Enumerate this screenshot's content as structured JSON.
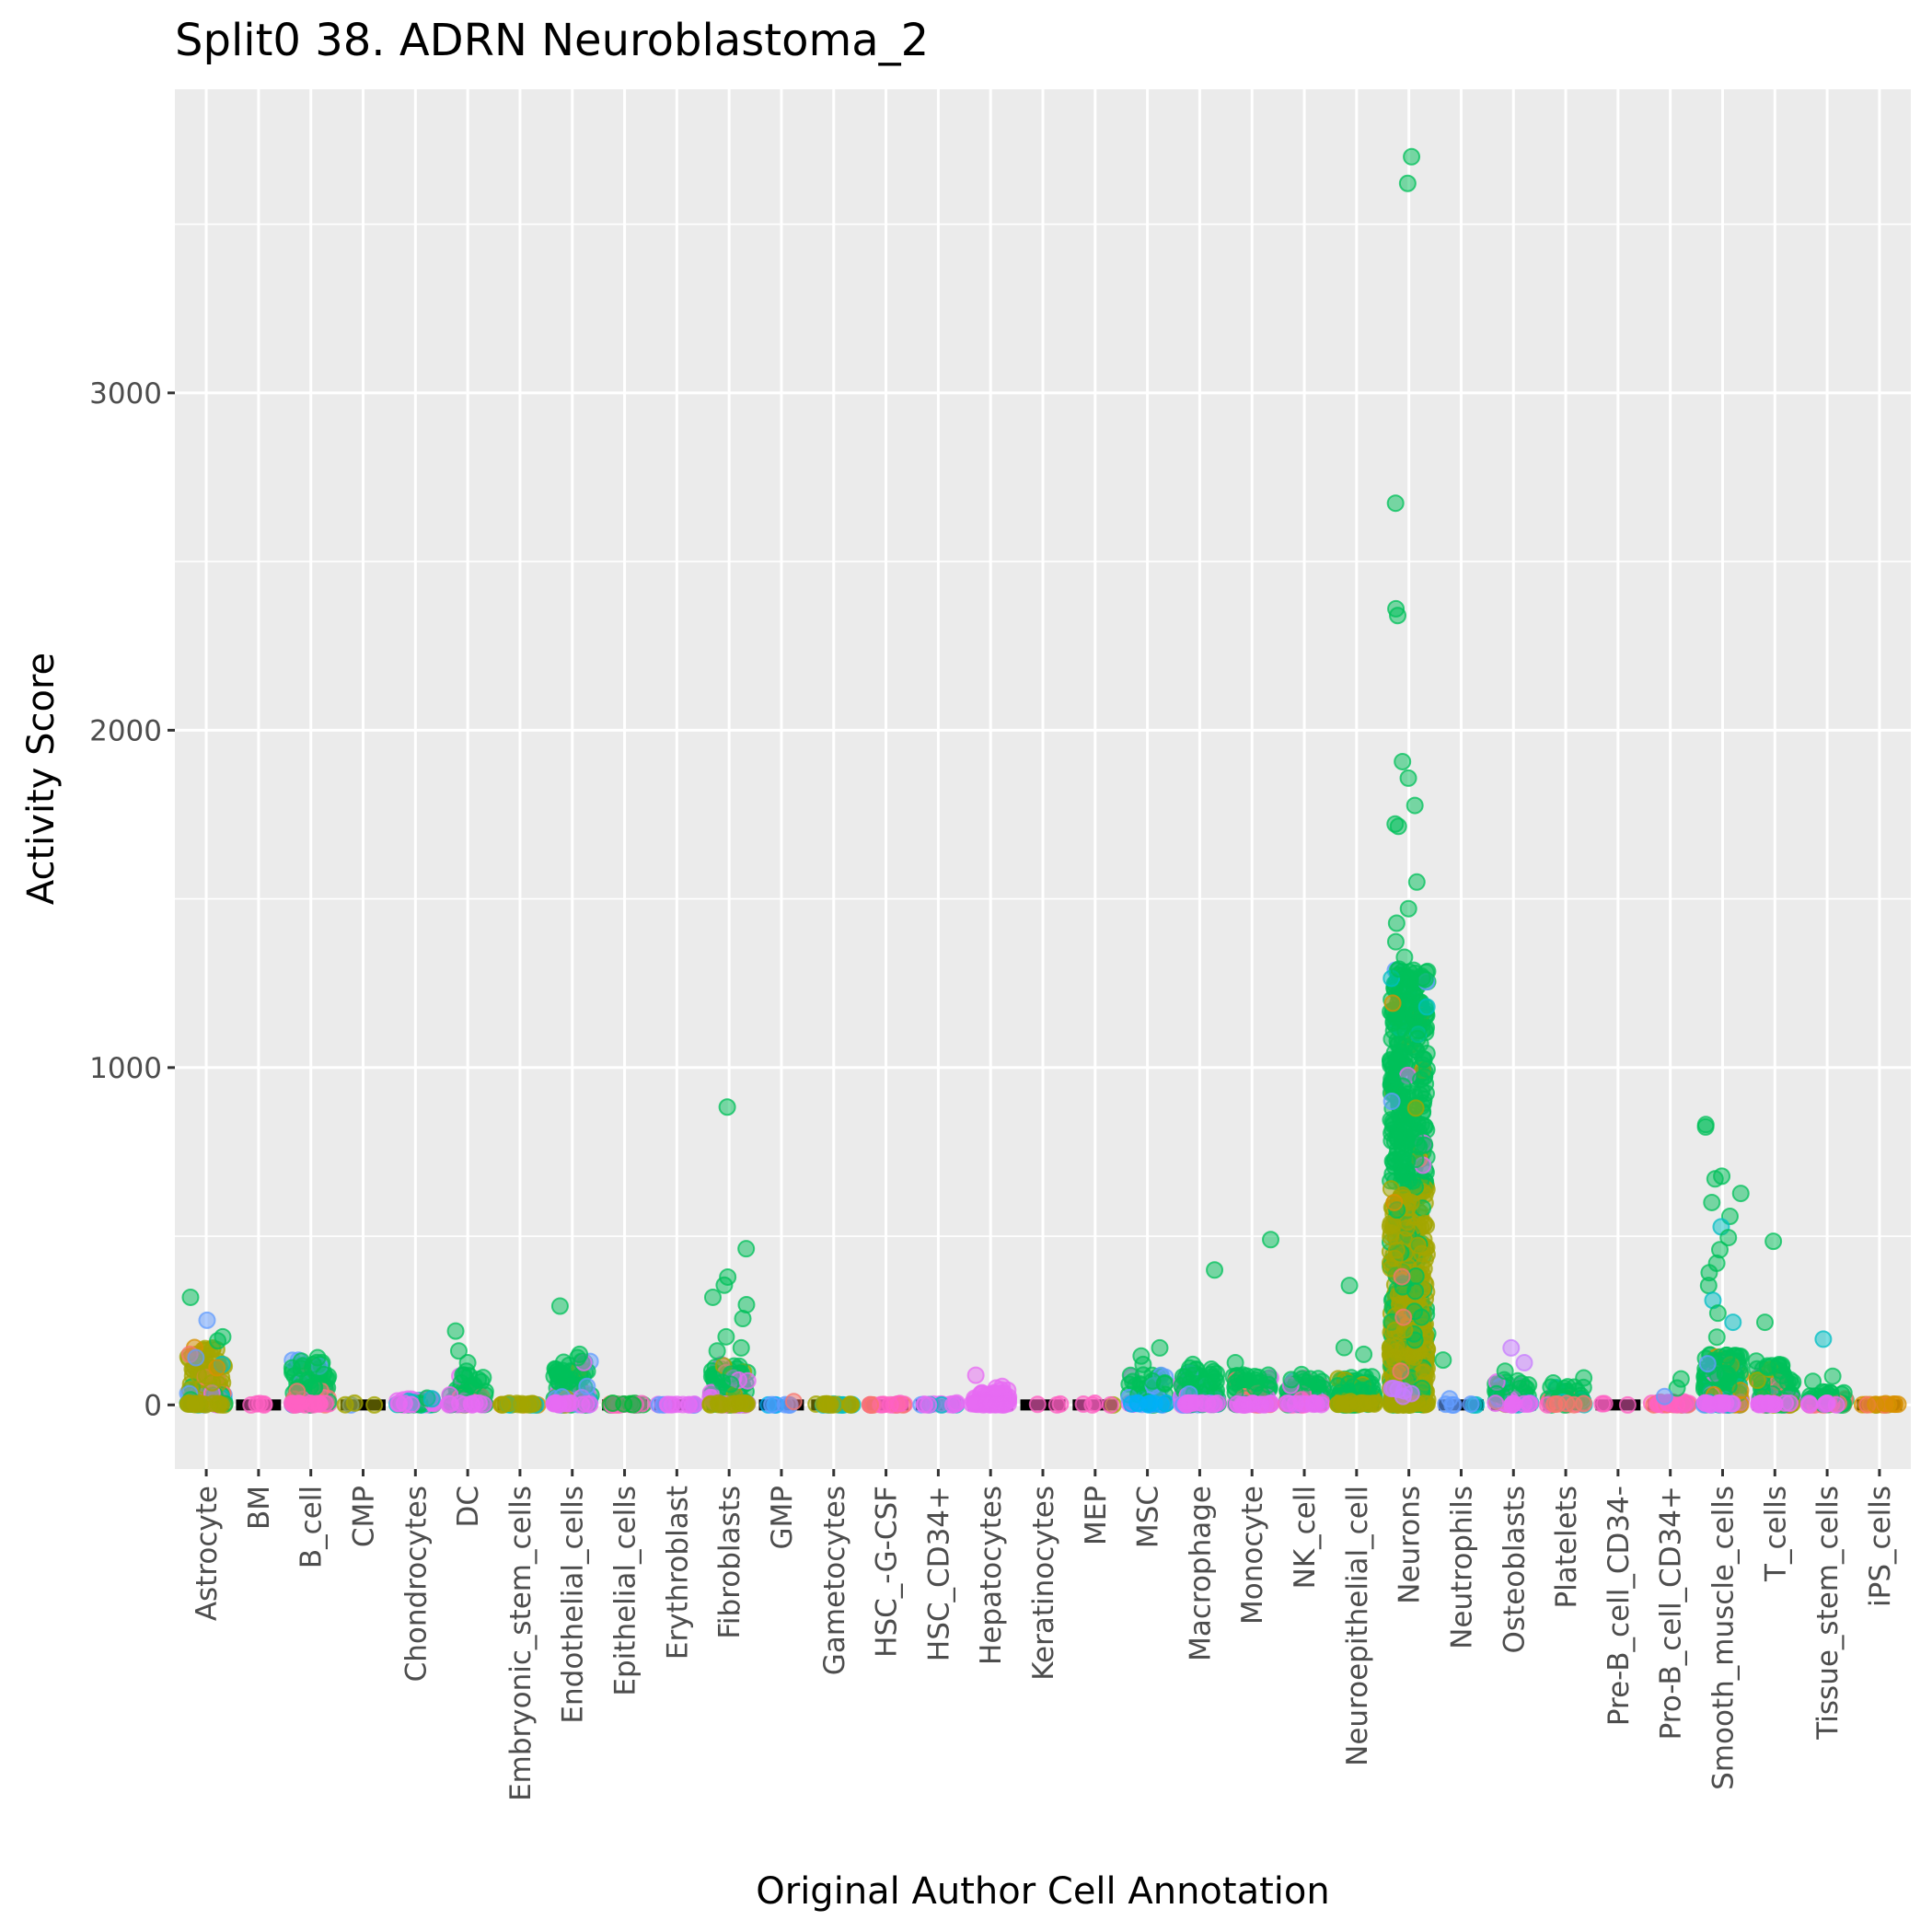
{
  "chart_data": {
    "type": "scatter",
    "subtype": "jitter-strip",
    "title": "Split0 38. ADRN Neuroblastoma_2",
    "xlabel": "Original Author Cell Annotation",
    "ylabel": "Activity Score",
    "ylim": [
      -190,
      3900
    ],
    "yticks": [
      0,
      1000,
      2000,
      3000
    ],
    "ytick_labels": [
      "0",
      "1000",
      "2000",
      "3000"
    ],
    "grid": true,
    "legend": "none",
    "palette": {
      "green": "#00C05A",
      "pink": "#FF61C3",
      "magenta": "#E76BF3",
      "olive": "#A3A500",
      "orange": "#D89000",
      "salmon": "#F8766D",
      "blue": "#619CFF",
      "skyblue": "#00B0F6",
      "cyan": "#00BFC4",
      "violet": "#C77CFF",
      "darkgreen": "#00BA38",
      "median": "#000000",
      "panel": "#EBEBEB",
      "gridline": "#FFFFFF"
    },
    "categories": [
      "Astrocyte",
      "BM",
      "B_cell",
      "CMP",
      "Chondrocytes",
      "DC",
      "Embryonic_stem_cells",
      "Endothelial_cells",
      "Epithelial_cells",
      "Erythroblast",
      "Fibroblasts",
      "GMP",
      "Gametocytes",
      "HSC_-G-CSF",
      "HSC_CD34+",
      "Hepatocytes",
      "Keratinocytes",
      "MEP",
      "MSC",
      "Macrophage",
      "Monocyte",
      "NK_cell",
      "Neuroepithelial_cell",
      "Neurons",
      "Neutrophils",
      "Osteoblasts",
      "Platelets",
      "Pre-B_cell_CD34-",
      "Pro-B_cell_CD34+",
      "Smooth_muscle_cells",
      "T_cells",
      "Tissue_stem_cells",
      "iPS_cells"
    ],
    "series": [
      {
        "category": "Astrocyte",
        "median": 0,
        "mass_top": 170,
        "count": 120,
        "colors": [
          "olive",
          "green",
          "salmon",
          "blue",
          "cyan",
          "orange",
          "magenta"
        ],
        "outliers": [
          [
            319,
            "green"
          ],
          [
            251,
            "blue"
          ],
          [
            202,
            "green"
          ],
          [
            190,
            "green"
          ],
          [
            170,
            "orange"
          ],
          [
            150,
            "salmon"
          ],
          [
            140,
            "blue"
          ],
          [
            120,
            "cyan"
          ],
          [
            110,
            "orange"
          ]
        ]
      },
      {
        "category": "BM",
        "median": 0,
        "mass_top": 0,
        "count": 2,
        "colors": [
          "pink"
        ],
        "outliers": [
          [
            4,
            "pink"
          ]
        ]
      },
      {
        "category": "B_cell",
        "median": 0,
        "mass_top": 135,
        "count": 110,
        "colors": [
          "green",
          "pink",
          "salmon",
          "blue"
        ],
        "outliers": [
          [
            140,
            "green"
          ],
          [
            130,
            "green"
          ]
        ]
      },
      {
        "category": "CMP",
        "median": 0,
        "mass_top": 0,
        "count": 2,
        "colors": [
          "olive",
          "blue"
        ],
        "outliers": []
      },
      {
        "category": "Chondrocytes",
        "median": 0,
        "mass_top": 20,
        "count": 40,
        "colors": [
          "magenta",
          "green",
          "cyan"
        ],
        "outliers": [
          [
            20,
            "green"
          ],
          [
            18,
            "cyan"
          ]
        ]
      },
      {
        "category": "DC",
        "median": 0,
        "mass_top": 95,
        "count": 70,
        "colors": [
          "green",
          "magenta",
          "salmon"
        ],
        "outliers": [
          [
            219,
            "green"
          ],
          [
            160,
            "green"
          ],
          [
            125,
            "green"
          ],
          [
            100,
            "green"
          ]
        ]
      },
      {
        "category": "Embryonic_stem_cells",
        "median": 0,
        "mass_top": 5,
        "count": 20,
        "colors": [
          "olive",
          "orange",
          "cyan"
        ],
        "outliers": []
      },
      {
        "category": "Endothelial_cells",
        "median": 0,
        "mass_top": 130,
        "count": 100,
        "colors": [
          "green",
          "magenta",
          "cyan",
          "blue",
          "olive"
        ],
        "outliers": [
          [
            293,
            "green"
          ],
          [
            150,
            "green"
          ],
          [
            140,
            "green"
          ],
          [
            55,
            "blue"
          ]
        ]
      },
      {
        "category": "Epithelial_cells",
        "median": 0,
        "mass_top": 5,
        "count": 20,
        "colors": [
          "darkgreen",
          "salmon",
          "pink"
        ],
        "outliers": []
      },
      {
        "category": "Erythroblast",
        "median": 0,
        "mass_top": 2,
        "count": 15,
        "colors": [
          "magenta",
          "blue",
          "violet",
          "pink"
        ],
        "outliers": []
      },
      {
        "category": "Fibroblasts",
        "median": 0,
        "mass_top": 120,
        "count": 130,
        "colors": [
          "green",
          "olive",
          "magenta",
          "violet"
        ],
        "outliers": [
          [
            883,
            "green"
          ],
          [
            463,
            "green"
          ],
          [
            379,
            "green"
          ],
          [
            355,
            "green"
          ],
          [
            319,
            "green"
          ],
          [
            297,
            "green"
          ],
          [
            256,
            "green"
          ],
          [
            202,
            "green"
          ],
          [
            169,
            "green"
          ],
          [
            160,
            "green"
          ]
        ]
      },
      {
        "category": "GMP",
        "median": 0,
        "mass_top": 0,
        "count": 5,
        "colors": [
          "blue",
          "salmon",
          "skyblue"
        ],
        "outliers": [
          [
            10,
            "salmon"
          ]
        ]
      },
      {
        "category": "Gametocytes",
        "median": 0,
        "mass_top": 3,
        "count": 20,
        "colors": [
          "olive",
          "cyan"
        ],
        "outliers": []
      },
      {
        "category": "HSC_-G-CSF",
        "median": 0,
        "mass_top": 3,
        "count": 15,
        "colors": [
          "pink",
          "salmon"
        ],
        "outliers": []
      },
      {
        "category": "HSC_CD34+",
        "median": 0,
        "mass_top": 3,
        "count": 15,
        "colors": [
          "magenta",
          "blue",
          "cyan"
        ],
        "outliers": []
      },
      {
        "category": "Hepatocytes",
        "median": 0,
        "mass_top": 45,
        "count": 60,
        "colors": [
          "magenta"
        ],
        "outliers": [
          [
            88,
            "magenta"
          ],
          [
            55,
            "magenta"
          ],
          [
            50,
            "magenta"
          ]
        ]
      },
      {
        "category": "Keratinocytes",
        "median": 0,
        "mass_top": 0,
        "count": 1,
        "colors": [
          "pink"
        ],
        "outliers": []
      },
      {
        "category": "MEP",
        "median": 0,
        "mass_top": 0,
        "count": 3,
        "colors": [
          "pink",
          "olive"
        ],
        "outliers": []
      },
      {
        "category": "MSC",
        "median": 0,
        "mass_top": 95,
        "count": 60,
        "colors": [
          "green",
          "skyblue",
          "magenta",
          "blue"
        ],
        "outliers": [
          [
            169,
            "green"
          ],
          [
            145,
            "green"
          ],
          [
            120,
            "green"
          ]
        ]
      },
      {
        "category": "Macrophage",
        "median": 0,
        "mass_top": 110,
        "count": 110,
        "colors": [
          "green",
          "magenta",
          "blue"
        ],
        "outliers": [
          [
            400,
            "green"
          ],
          [
            120,
            "green"
          ]
        ]
      },
      {
        "category": "Monocyte",
        "median": 0,
        "mass_top": 95,
        "count": 90,
        "colors": [
          "green",
          "magenta",
          "salmon"
        ],
        "outliers": [
          [
            490,
            "green"
          ],
          [
            125,
            "green"
          ]
        ]
      },
      {
        "category": "NK_cell",
        "median": 0,
        "mass_top": 80,
        "count": 70,
        "colors": [
          "green",
          "magenta",
          "pink",
          "blue"
        ],
        "outliers": [
          [
            90,
            "green"
          ],
          [
            75,
            "green"
          ]
        ]
      },
      {
        "category": "Neuroepithelial_cell",
        "median": 0,
        "mass_top": 85,
        "count": 100,
        "colors": [
          "green",
          "olive"
        ],
        "outliers": [
          [
            354,
            "green"
          ],
          [
            170,
            "green"
          ],
          [
            150,
            "green"
          ]
        ]
      },
      {
        "category": "Neurons",
        "median": 0,
        "mass_top": 1290,
        "olive_top": 650,
        "count": 900,
        "colors": [
          "green",
          "olive",
          "magenta",
          "cyan",
          "blue",
          "orange"
        ],
        "outliers": [
          [
            3700,
            "green"
          ],
          [
            3621,
            "green"
          ],
          [
            2673,
            "green"
          ],
          [
            2360,
            "green"
          ],
          [
            2340,
            "green"
          ],
          [
            1907,
            "green"
          ],
          [
            1858,
            "green"
          ],
          [
            1777,
            "green"
          ],
          [
            1722,
            "green"
          ],
          [
            1715,
            "green"
          ],
          [
            1550,
            "green"
          ],
          [
            1471,
            "green"
          ],
          [
            1428,
            "green"
          ],
          [
            1373,
            "green"
          ],
          [
            1327,
            "green"
          ],
          [
            1292,
            "green"
          ],
          [
            1240,
            "green"
          ],
          [
            1180,
            "cyan"
          ],
          [
            900,
            "blue"
          ],
          [
            880,
            "olive"
          ],
          [
            600,
            "orange"
          ],
          [
            380,
            "salmon"
          ],
          [
            260,
            "salmon"
          ],
          [
            100,
            "salmon"
          ]
        ]
      },
      {
        "category": "Neutrophils",
        "median": 0,
        "mass_top": 0,
        "count": 4,
        "colors": [
          "blue",
          "cyan",
          "salmon"
        ],
        "outliers": [
          [
            133,
            "green"
          ],
          [
            18,
            "blue"
          ]
        ]
      },
      {
        "category": "Osteoblasts",
        "median": 0,
        "mass_top": 80,
        "count": 60,
        "colors": [
          "green",
          "magenta",
          "olive",
          "cyan"
        ],
        "outliers": [
          [
            169,
            "violet"
          ],
          [
            125,
            "violet"
          ],
          [
            100,
            "green"
          ]
        ]
      },
      {
        "category": "Platelets",
        "median": 0,
        "mass_top": 55,
        "count": 40,
        "colors": [
          "green",
          "salmon",
          "pink",
          "cyan"
        ],
        "outliers": [
          [
            80,
            "green"
          ],
          [
            65,
            "green"
          ]
        ]
      },
      {
        "category": "Pre-B_cell_CD34-",
        "median": 0,
        "mass_top": 0,
        "count": 1,
        "colors": [
          "pink"
        ],
        "outliers": []
      },
      {
        "category": "Pro-B_cell_CD34+",
        "median": 0,
        "mass_top": 10,
        "count": 40,
        "colors": [
          "pink",
          "blue",
          "salmon"
        ],
        "outliers": [
          [
            77,
            "green"
          ],
          [
            50,
            "green"
          ],
          [
            25,
            "blue"
          ]
        ]
      },
      {
        "category": "Smooth_muscle_cells",
        "median": 0,
        "mass_top": 150,
        "count": 200,
        "colors": [
          "green",
          "magenta",
          "cyan",
          "blue",
          "orange"
        ],
        "outliers": [
          [
            831,
            "green"
          ],
          [
            824,
            "green"
          ],
          [
            678,
            "green"
          ],
          [
            670,
            "green"
          ],
          [
            627,
            "green"
          ],
          [
            600,
            "green"
          ],
          [
            559,
            "green"
          ],
          [
            528,
            "cyan"
          ],
          [
            496,
            "green"
          ],
          [
            460,
            "green"
          ],
          [
            420,
            "green"
          ],
          [
            392,
            "green"
          ],
          [
            354,
            "green"
          ],
          [
            310,
            "cyan"
          ],
          [
            272,
            "green"
          ],
          [
            245,
            "cyan"
          ],
          [
            201,
            "green"
          ]
        ]
      },
      {
        "category": "T_cells",
        "median": 0,
        "mass_top": 120,
        "count": 110,
        "colors": [
          "green",
          "magenta",
          "olive",
          "salmon"
        ],
        "outliers": [
          [
            485,
            "green"
          ],
          [
            245,
            "green"
          ],
          [
            130,
            "green"
          ]
        ]
      },
      {
        "category": "Tissue_stem_cells",
        "median": 0,
        "mass_top": 40,
        "count": 50,
        "colors": [
          "green",
          "magenta",
          "salmon"
        ],
        "outliers": [
          [
            195,
            "cyan"
          ],
          [
            85,
            "green"
          ],
          [
            70,
            "green"
          ]
        ]
      },
      {
        "category": "iPS_cells",
        "median": 0,
        "mass_top": 2,
        "count": 15,
        "colors": [
          "orange",
          "salmon",
          "olive"
        ],
        "outliers": []
      }
    ]
  }
}
